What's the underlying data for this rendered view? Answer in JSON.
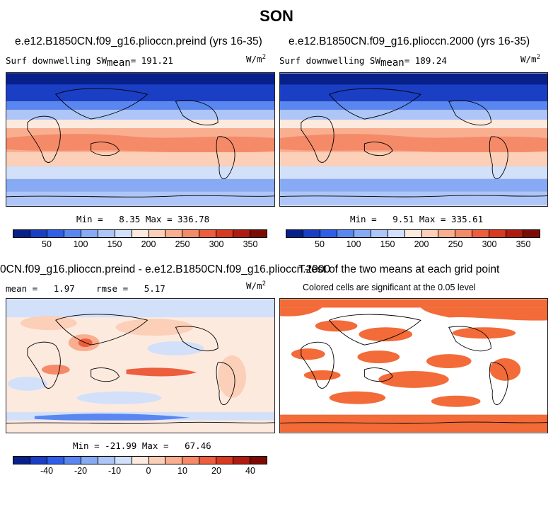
{
  "title": "SON",
  "panels": [
    {
      "id": "preind",
      "title": "e.e12.B1850CN.f09_g16.plioccn.preind (yrs 16-35)",
      "field_label": "Surf downwelling SW",
      "stat_label": "mean",
      "stat_value": "191.21",
      "units_base": "W/m",
      "units_exp": "2",
      "min_label": "Min =",
      "min_value": "8.35",
      "max_label": "Max =",
      "max_value": "336.78"
    },
    {
      "id": "2000",
      "title": "e.e12.B1850CN.f09_g16.plioccn.2000 (yrs 16-35)",
      "field_label": "Surf downwelling SW",
      "stat_label": "mean",
      "stat_value": "189.24",
      "units_base": "W/m",
      "units_exp": "2",
      "min_label": "Min =",
      "min_value": "9.51",
      "max_label": "Max =",
      "max_value": "335.61"
    },
    {
      "id": "diff",
      "title": "0CN.f09_g16.plioccn.preind - e.e12.B1850CN.f09_g16.plioccn.2000",
      "mean_label": "mean =",
      "mean_value": "1.97",
      "rmse_label": "rmse =",
      "rmse_value": "5.17",
      "units_base": "W/m",
      "units_exp": "2",
      "min_label": "Min =",
      "min_value": "-21.99",
      "max_label": "Max =",
      "max_value": "67.46"
    },
    {
      "id": "ttest",
      "title": "T-test of the two means at each grid point",
      "subtitle": "Colored cells are significant at the 0.05 level",
      "sig_color": "#f26b38"
    }
  ],
  "colorbar_abs": {
    "colors": [
      "#08208a",
      "#1a3fc4",
      "#2f5fe8",
      "#5a86f0",
      "#87aaf4",
      "#aec6f7",
      "#d2e0fa",
      "#fdeadf",
      "#fbcfb8",
      "#f8ae8f",
      "#f48a68",
      "#ec5e3c",
      "#d8391f",
      "#b01b10",
      "#7d0a04"
    ],
    "tick_values": [
      "50",
      "100",
      "150",
      "200",
      "250",
      "300",
      "350"
    ]
  },
  "colorbar_diff": {
    "colors": [
      "#08208a",
      "#1a3fc4",
      "#2f5fe8",
      "#5a86f0",
      "#87aaf4",
      "#aec6f7",
      "#d2e0fa",
      "#fdeadf",
      "#fbcfb8",
      "#f8ae8f",
      "#f48a68",
      "#ec5e3c",
      "#d8391f",
      "#b01b10",
      "#7d0a04"
    ],
    "tick_values": [
      "-40",
      "-20",
      "-10",
      "0",
      "10",
      "20",
      "40"
    ]
  }
}
